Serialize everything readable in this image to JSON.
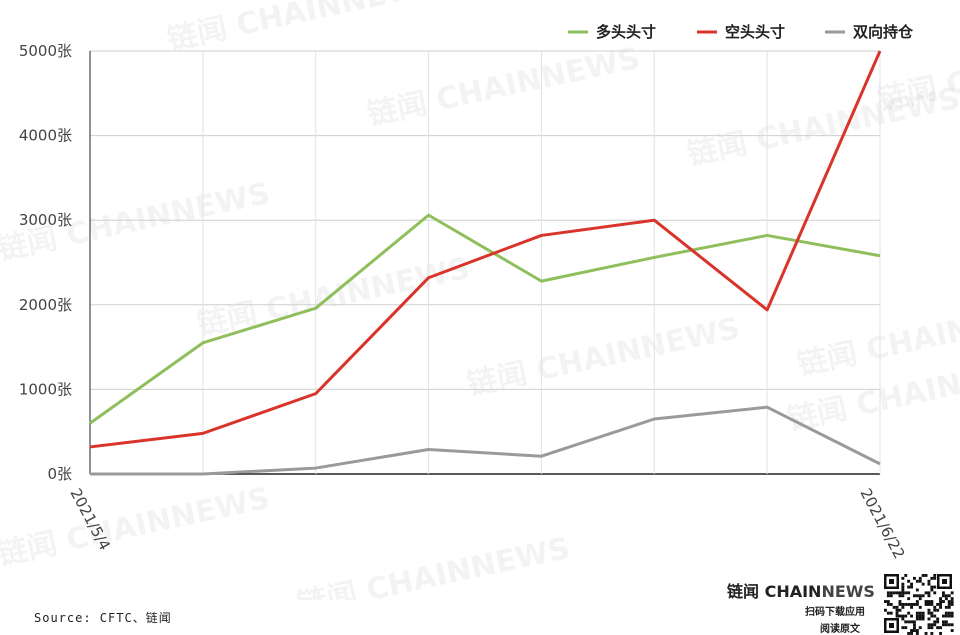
{
  "chart_data": {
    "type": "line",
    "x": [
      "2021/5/4",
      "",
      "",
      "",
      "",
      "",
      "",
      "2021/6/22"
    ],
    "series": [
      {
        "name": "多头头寸",
        "color": "#8fbf5c",
        "values": [
          600,
          1550,
          1960,
          3060,
          2280,
          2560,
          2820,
          2580
        ]
      },
      {
        "name": "空头头寸",
        "color": "#d9342b",
        "values": [
          320,
          480,
          950,
          2320,
          2820,
          3000,
          1940,
          5000
        ]
      },
      {
        "name": "双向持仓",
        "color": "#9a9a9a",
        "values": [
          0,
          0,
          70,
          290,
          210,
          650,
          790,
          120
        ]
      }
    ],
    "ylim": [
      0,
      5000
    ],
    "yticks": [
      "0张",
      "1000张",
      "2000张",
      "3000张",
      "4000张",
      "5000张"
    ],
    "ytick_values": [
      0,
      1000,
      2000,
      3000,
      4000,
      5000
    ],
    "xtick_labels": [
      "2021/5/4",
      "2021/6/22"
    ],
    "grid": true,
    "legend": "top-right"
  },
  "footer": {
    "source": "Source: CFTC、链闻",
    "brand_main": "链闻 CHAIN",
    "brand_news": "NEWS",
    "brand_sub1": "扫码下载应用",
    "brand_sub2": "阅读原文"
  },
  "watermark_text": "链闻 CHAINNEWS"
}
